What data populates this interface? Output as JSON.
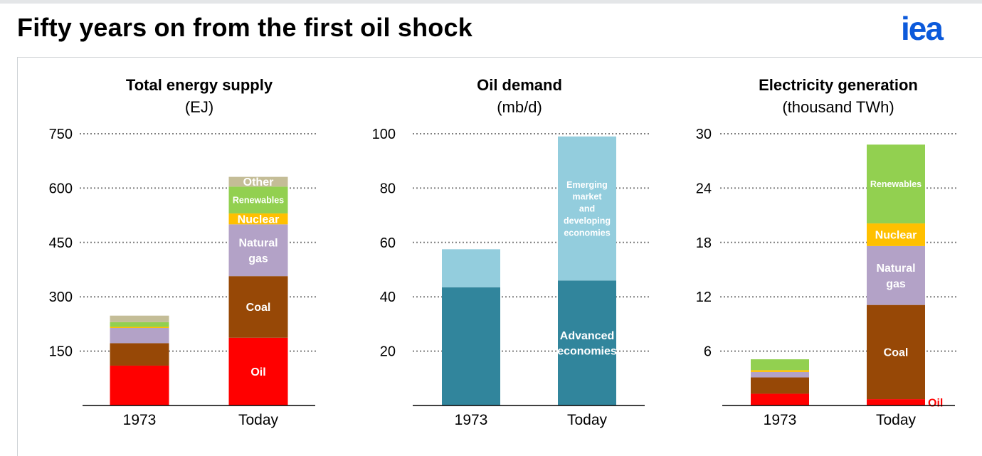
{
  "header": {
    "title": "Fifty years on from the first oil shock",
    "logo_text": "iea"
  },
  "colors": {
    "oil": "#ff0000",
    "coal": "#974806",
    "natural_gas": "#b3a2c7",
    "nuclear": "#ffc000",
    "renewables": "#92d050",
    "other": "#c4bd97",
    "advanced_economies": "#31859c",
    "emerging_economies": "#93cddd",
    "brand_blue": "#0c5adb",
    "grid": "#7f7f7f"
  },
  "chart_data": [
    {
      "type": "bar",
      "stacked": true,
      "title": "Total energy supply",
      "subtitle": "(EJ)",
      "categories": [
        "1973",
        "Today"
      ],
      "ylim": [
        0,
        750
      ],
      "yticks": [
        150,
        300,
        450,
        600,
        750
      ],
      "ytick_labels": [
        "150",
        "300",
        "450",
        "600",
        "750"
      ],
      "grid": true,
      "series": [
        {
          "name": "Oil",
          "values": [
            110,
            187
          ],
          "color": "#ff0000",
          "label": [
            "",
            "Oil"
          ]
        },
        {
          "name": "Coal",
          "values": [
            62,
            170
          ],
          "color": "#974806",
          "label": [
            "",
            "Coal"
          ]
        },
        {
          "name": "Natural gas",
          "values": [
            42,
            143
          ],
          "color": "#b3a2c7",
          "label": [
            "",
            "Natural\ngas"
          ]
        },
        {
          "name": "Nuclear",
          "values": [
            3,
            30
          ],
          "color": "#ffc000",
          "label": [
            "",
            "Nuclear"
          ]
        },
        {
          "name": "Renewables",
          "values": [
            13,
            74
          ],
          "color": "#92d050",
          "label": [
            "",
            "Renewables"
          ]
        },
        {
          "name": "Other",
          "values": [
            18,
            27
          ],
          "color": "#c4bd97",
          "label": [
            "",
            "Other"
          ]
        }
      ]
    },
    {
      "type": "bar",
      "stacked": true,
      "title": "Oil demand",
      "subtitle": "(mb/d)",
      "categories": [
        "1973",
        "Today"
      ],
      "ylim": [
        0,
        100
      ],
      "yticks": [
        20,
        40,
        60,
        80,
        100
      ],
      "ytick_labels": [
        "20",
        "40",
        "60",
        "80",
        "100"
      ],
      "grid": true,
      "series": [
        {
          "name": "Advanced economies",
          "values": [
            43.5,
            46
          ],
          "color": "#31859c",
          "label": [
            "",
            "Advanced\neconomies"
          ]
        },
        {
          "name": "Emerging market and developing economies",
          "values": [
            14,
            53
          ],
          "color": "#93cddd",
          "label": [
            "",
            "Emerging\nmarket\nand\ndeveloping\neconomies"
          ]
        }
      ]
    },
    {
      "type": "bar",
      "stacked": true,
      "title": "Electricity generation",
      "subtitle": "(thousand TWh)",
      "categories": [
        "1973",
        "Today"
      ],
      "ylim": [
        0,
        30
      ],
      "yticks": [
        6,
        12,
        18,
        24,
        30
      ],
      "ytick_labels": [
        "6",
        "12",
        "18",
        "24",
        "30"
      ],
      "grid": true,
      "series": [
        {
          "name": "Oil",
          "values": [
            1.3,
            0.7
          ],
          "color": "#ff0000",
          "label": [
            "",
            "Oil"
          ],
          "label_outside": true
        },
        {
          "name": "Coal",
          "values": [
            1.8,
            10.4
          ],
          "color": "#974806",
          "label": [
            "",
            "Coal"
          ]
        },
        {
          "name": "Natural gas",
          "values": [
            0.6,
            6.5
          ],
          "color": "#b3a2c7",
          "label": [
            "",
            "Natural\ngas"
          ]
        },
        {
          "name": "Nuclear",
          "values": [
            0.2,
            2.5
          ],
          "color": "#ffc000",
          "label": [
            "",
            "Nuclear"
          ]
        },
        {
          "name": "Renewables",
          "values": [
            1.2,
            8.7
          ],
          "color": "#92d050",
          "label": [
            "",
            "Renewables"
          ]
        }
      ]
    }
  ]
}
